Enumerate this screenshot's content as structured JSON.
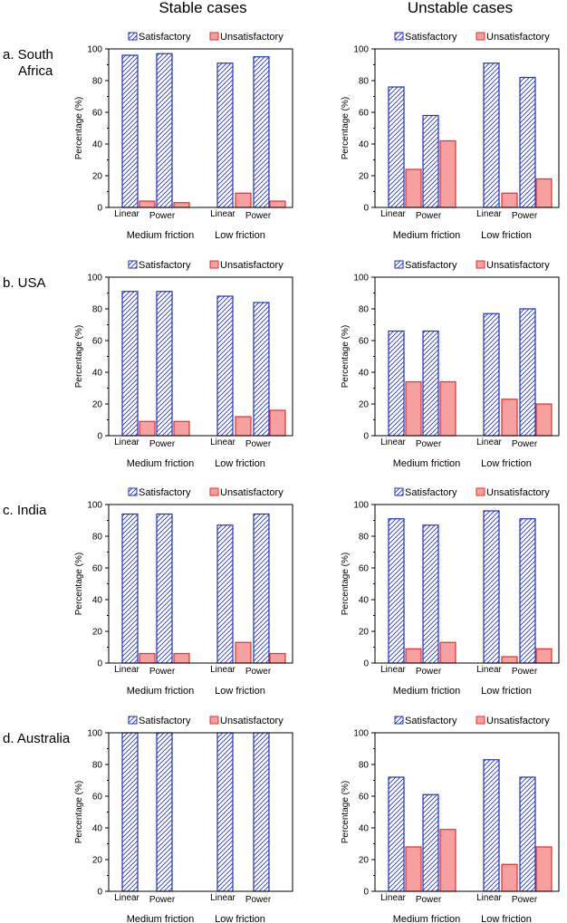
{
  "columns": [
    "Stable cases",
    "Unstable cases"
  ],
  "rows": [
    {
      "label_lines": [
        "a. South",
        "Africa"
      ]
    },
    {
      "label_lines": [
        "b. USA"
      ]
    },
    {
      "label_lines": [
        "c. India"
      ]
    },
    {
      "label_lines": [
        "d. Australia"
      ]
    }
  ],
  "colors": {
    "satisfactory": "#1f2fbf",
    "unsatisfactory_fill": "#f7a0a0",
    "unsatisfactory_edge": "#e03030"
  },
  "chart_data": [
    {
      "type": "bar",
      "row": 0,
      "col": 0,
      "ylabel": "Percentage (%)",
      "ylim": [
        0,
        100
      ],
      "yticks": [
        0,
        20,
        40,
        60,
        80,
        100
      ],
      "legend": [
        "Satisfactory",
        "Unsatisfactory"
      ],
      "groups": [
        "Medium friction",
        "Low friction"
      ],
      "categories": [
        "Linear",
        "Power",
        "Linear",
        "Power"
      ],
      "series": [
        {
          "name": "Satisfactory",
          "values": [
            96,
            97,
            91,
            95
          ]
        },
        {
          "name": "Unsatisfactory",
          "values": [
            4,
            3,
            9,
            4
          ]
        }
      ]
    },
    {
      "type": "bar",
      "row": 0,
      "col": 1,
      "ylabel": "Percentage (%)",
      "ylim": [
        0,
        100
      ],
      "yticks": [
        0,
        20,
        40,
        60,
        80,
        100
      ],
      "legend": [
        "Satisfactory",
        "Unsatisfactory"
      ],
      "groups": [
        "Medium friction",
        "Low friction"
      ],
      "categories": [
        "Linear",
        "Power",
        "Linear",
        "Power"
      ],
      "series": [
        {
          "name": "Satisfactory",
          "values": [
            76,
            58,
            91,
            82
          ]
        },
        {
          "name": "Unsatisfactory",
          "values": [
            24,
            42,
            9,
            18
          ]
        }
      ]
    },
    {
      "type": "bar",
      "row": 1,
      "col": 0,
      "ylabel": "Percentage (%)",
      "ylim": [
        0,
        100
      ],
      "yticks": [
        0,
        20,
        40,
        60,
        80,
        100
      ],
      "legend": [
        "Satisfactory",
        "Unsatisfactory"
      ],
      "groups": [
        "Medium friction",
        "Low friction"
      ],
      "categories": [
        "Linear",
        "Power",
        "Linear",
        "Power"
      ],
      "series": [
        {
          "name": "Satisfactory",
          "values": [
            91,
            91,
            88,
            84
          ]
        },
        {
          "name": "Unsatisfactory",
          "values": [
            9,
            9,
            12,
            16
          ]
        }
      ]
    },
    {
      "type": "bar",
      "row": 1,
      "col": 1,
      "ylabel": "Percentage (%)",
      "ylim": [
        0,
        100
      ],
      "yticks": [
        0,
        20,
        40,
        60,
        80,
        100
      ],
      "legend": [
        "Satisfactory",
        "Unsatisfactory"
      ],
      "groups": [
        "Medium friction",
        "Low friction"
      ],
      "categories": [
        "Linear",
        "Power",
        "Linear",
        "Power"
      ],
      "series": [
        {
          "name": "Satisfactory",
          "values": [
            66,
            66,
            77,
            80
          ]
        },
        {
          "name": "Unsatisfactory",
          "values": [
            34,
            34,
            23,
            20
          ]
        }
      ]
    },
    {
      "type": "bar",
      "row": 2,
      "col": 0,
      "ylabel": "Percentage (%)",
      "ylim": [
        0,
        100
      ],
      "yticks": [
        0,
        20,
        40,
        60,
        80,
        100
      ],
      "legend": [
        "Satisfactory",
        "Unsatisfactory"
      ],
      "groups": [
        "Medium friction",
        "Low friction"
      ],
      "categories": [
        "Linear",
        "Power",
        "Linear",
        "Power"
      ],
      "series": [
        {
          "name": "Satisfactory",
          "values": [
            94,
            94,
            87,
            94
          ]
        },
        {
          "name": "Unsatisfactory",
          "values": [
            6,
            6,
            13,
            6
          ]
        }
      ]
    },
    {
      "type": "bar",
      "row": 2,
      "col": 1,
      "ylabel": "Percentage (%)",
      "ylim": [
        0,
        100
      ],
      "yticks": [
        0,
        20,
        40,
        60,
        80,
        100
      ],
      "legend": [
        "Satisfactory",
        "Unsatisfactory"
      ],
      "groups": [
        "Medium friction",
        "Low friction"
      ],
      "categories": [
        "Linear",
        "Power",
        "Linear",
        "Power"
      ],
      "series": [
        {
          "name": "Satisfactory",
          "values": [
            91,
            87,
            96,
            91
          ]
        },
        {
          "name": "Unsatisfactory",
          "values": [
            9,
            13,
            4,
            9
          ]
        }
      ]
    },
    {
      "type": "bar",
      "row": 3,
      "col": 0,
      "ylabel": "Percentage (%)",
      "ylim": [
        0,
        100
      ],
      "yticks": [
        0,
        20,
        40,
        60,
        80,
        100
      ],
      "legend": [
        "Satisfactory",
        "Unsatisfactory"
      ],
      "groups": [
        "Medium friction",
        "Low friction"
      ],
      "categories": [
        "Linear",
        "Power",
        "Linear",
        "Power"
      ],
      "series": [
        {
          "name": "Satisfactory",
          "values": [
            100,
            100,
            100,
            100
          ]
        },
        {
          "name": "Unsatisfactory",
          "values": [
            0,
            0,
            0,
            0
          ]
        }
      ]
    },
    {
      "type": "bar",
      "row": 3,
      "col": 1,
      "ylabel": "Percentage (%)",
      "ylim": [
        0,
        100
      ],
      "yticks": [
        0,
        20,
        40,
        60,
        80,
        100
      ],
      "legend": [
        "Satisfactory",
        "Unsatisfactory"
      ],
      "groups": [
        "Medium friction",
        "Low friction"
      ],
      "categories": [
        "Linear",
        "Power",
        "Linear",
        "Power"
      ],
      "series": [
        {
          "name": "Satisfactory",
          "values": [
            72,
            61,
            83,
            72
          ]
        },
        {
          "name": "Unsatisfactory",
          "values": [
            28,
            39,
            17,
            28
          ]
        }
      ]
    }
  ]
}
